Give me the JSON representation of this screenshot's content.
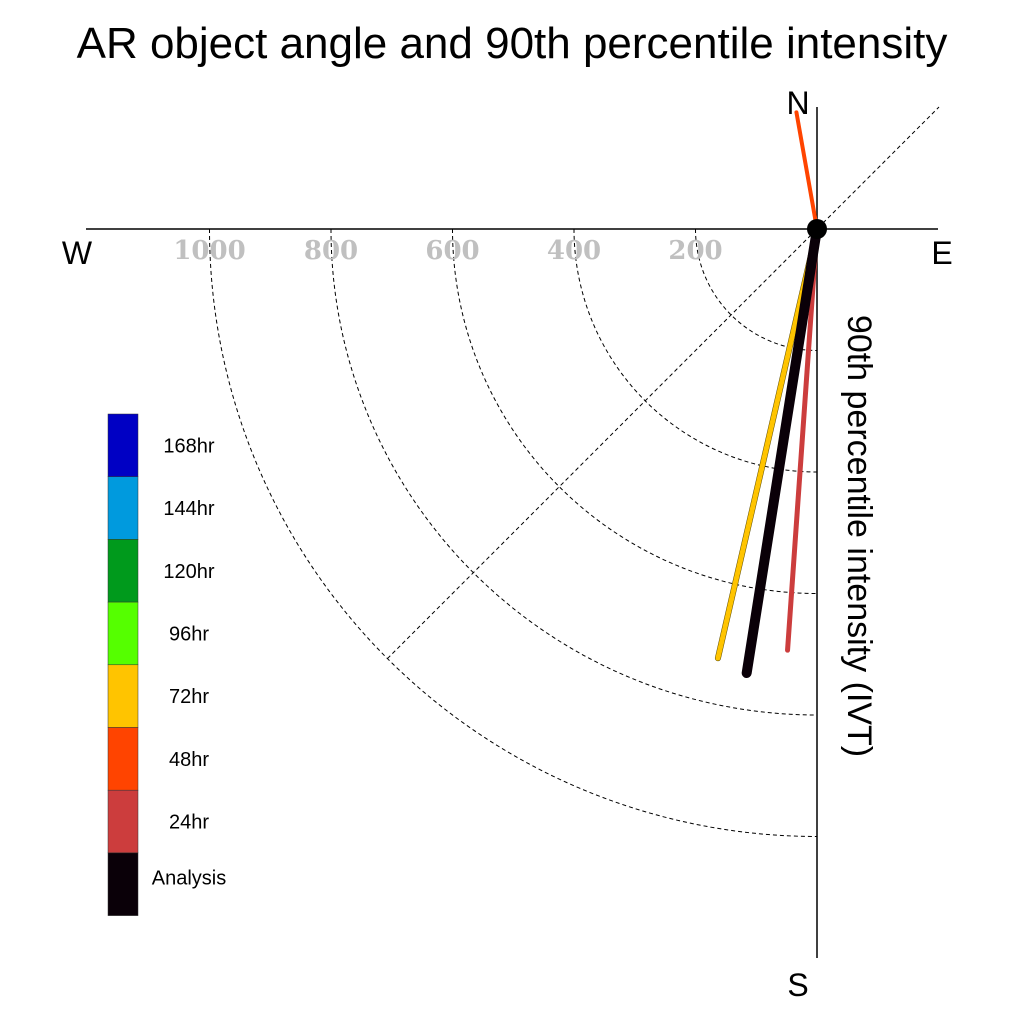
{
  "chart_data": {
    "type": "polar-vector",
    "title": "AR object angle and 90th percentile intensity",
    "ylabel": "90th percentile intensity (IVT)",
    "compass": {
      "north": "N",
      "south": "S",
      "east": "E",
      "west": "W"
    },
    "radial_ticks": [
      "200",
      "400",
      "600",
      "800",
      "1000"
    ],
    "radial_tick_values": [
      200,
      400,
      600,
      800,
      1000
    ],
    "rlim": [
      0,
      1000
    ],
    "grid": true,
    "series": [
      {
        "name": "24hr",
        "color": "#CC3D3D",
        "angle_deg": 184,
        "value": 695
      },
      {
        "name": "48hr",
        "color": "#FF4400",
        "angle_deg": 350,
        "value": 195
      },
      {
        "name": "72hr",
        "color": "#FFC400",
        "angle_deg": 193,
        "value": 725
      },
      {
        "name": "Analysis",
        "color": "#0A0008",
        "angle_deg": 189,
        "value": 740
      }
    ],
    "legend": {
      "placement": "left",
      "items": [
        {
          "label": "168hr",
          "color": "#0000C4"
        },
        {
          "label": "144hr",
          "color": "#009ADE"
        },
        {
          "label": "120hr",
          "color": "#009A1C"
        },
        {
          "label": "96hr",
          "color": "#55FF00"
        },
        {
          "label": "72hr",
          "color": "#FFC400"
        },
        {
          "label": "48hr",
          "color": "#FF4400"
        },
        {
          "label": "24hr",
          "color": "#CC3D3D"
        },
        {
          "label": "Analysis",
          "color": "#0A0008"
        }
      ]
    }
  }
}
